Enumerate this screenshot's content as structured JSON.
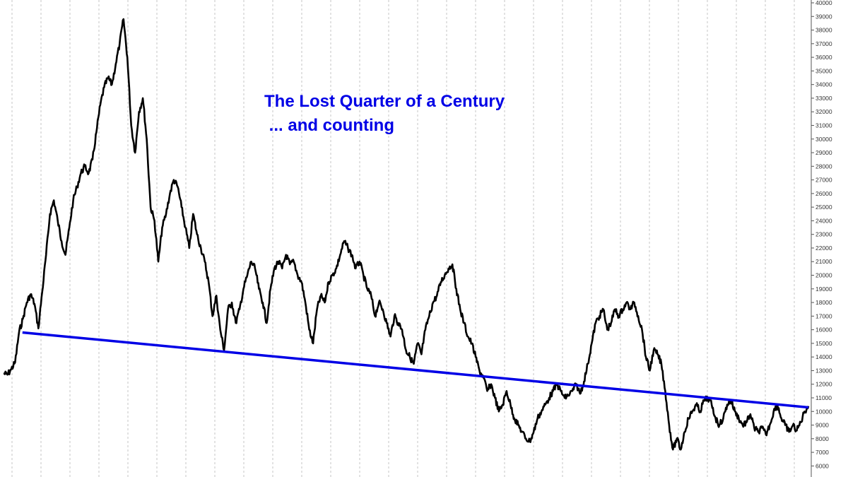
{
  "chart_data": {
    "type": "line",
    "title": "The Lost Quarter of a Century",
    "subtitle": " ... and counting",
    "xlabel": "",
    "ylabel": "",
    "ylim": [
      5500,
      40000
    ],
    "y_ticks": [
      6000,
      7000,
      8000,
      9000,
      10000,
      11000,
      12000,
      13000,
      14000,
      15000,
      16000,
      17000,
      18000,
      19000,
      20000,
      21000,
      22000,
      23000,
      24000,
      25000,
      26000,
      27000,
      28000,
      29000,
      30000,
      31000,
      32000,
      33000,
      34000,
      35000,
      36000,
      37000,
      38000,
      39000,
      40000
    ],
    "y_axis_position": "right",
    "vertical_grid": "dashed",
    "x_period_count": 28,
    "series": [
      {
        "values": [
          12800,
          12700,
          13100,
          13600,
          15800,
          16800,
          18000,
          18600,
          17900,
          16100,
          18800,
          21500,
          24500,
          25500,
          24000,
          22500,
          21500,
          23500,
          25500,
          26500,
          27500,
          28000,
          27500,
          28500,
          30500,
          32500,
          33800,
          34500,
          34000,
          35500,
          37000,
          38800,
          36000,
          31000,
          29000,
          32000,
          33000,
          30000,
          25000,
          24000,
          21000,
          23500,
          24500,
          26000,
          27000,
          26500,
          25000,
          23500,
          22000,
          24500,
          23000,
          22000,
          21000,
          19500,
          17000,
          18500,
          16000,
          14500,
          17500,
          18000,
          16500,
          17500,
          19000,
          20000,
          21000,
          20500,
          19000,
          18000,
          16500,
          19000,
          20500,
          21000,
          20500,
          21500,
          20800,
          21000,
          20000,
          19500,
          18000,
          16000,
          15000,
          17500,
          18500,
          18000,
          19500,
          20000,
          20500,
          21500,
          22500,
          22000,
          21500,
          20500,
          21000,
          20000,
          19000,
          18500,
          17000,
          18000,
          17500,
          16500,
          15500,
          17000,
          16500,
          16000,
          14500,
          14000,
          13500,
          15000,
          14200,
          16000,
          17000,
          18000,
          18500,
          19500,
          20000,
          20500,
          20800,
          19000,
          17500,
          16500,
          15500,
          15000,
          14000,
          13000,
          12500,
          11500,
          12000,
          11000,
          10000,
          10500,
          11500,
          10500,
          9500,
          9000,
          8500,
          8000,
          7800,
          8500,
          9500,
          10000,
          10500,
          11000,
          11500,
          12000,
          11500,
          11000,
          11200,
          11500,
          12000,
          11300,
          12200,
          13500,
          15000,
          16500,
          17000,
          17500,
          16000,
          16500,
          17500,
          17000,
          17500,
          18000,
          17500,
          18000,
          17000,
          16000,
          14000,
          13000,
          14500,
          14200,
          13500,
          11500,
          9000,
          7200,
          8000,
          7200,
          8500,
          9500,
          10000,
          10500,
          10000,
          10800,
          11000,
          10500,
          9500,
          9000,
          9500,
          10500,
          10800,
          10000,
          9500,
          9000,
          9200,
          9800,
          8800,
          8500,
          8800,
          8300,
          9000,
          10000,
          10500,
          9500,
          9000,
          8500,
          9000,
          8600,
          9200,
          10000,
          10400
        ]
      },
      {
        "type": "trendline",
        "x": [
          0.0235,
          1
        ],
        "values": [
          15800,
          10300
        ]
      }
    ]
  },
  "colors": {
    "background": "#ffffff",
    "price_line": "#000000",
    "trend_line": "#0000e6",
    "title": "#0000e6",
    "grid": "#b8b8b8",
    "axis": "#555555"
  }
}
